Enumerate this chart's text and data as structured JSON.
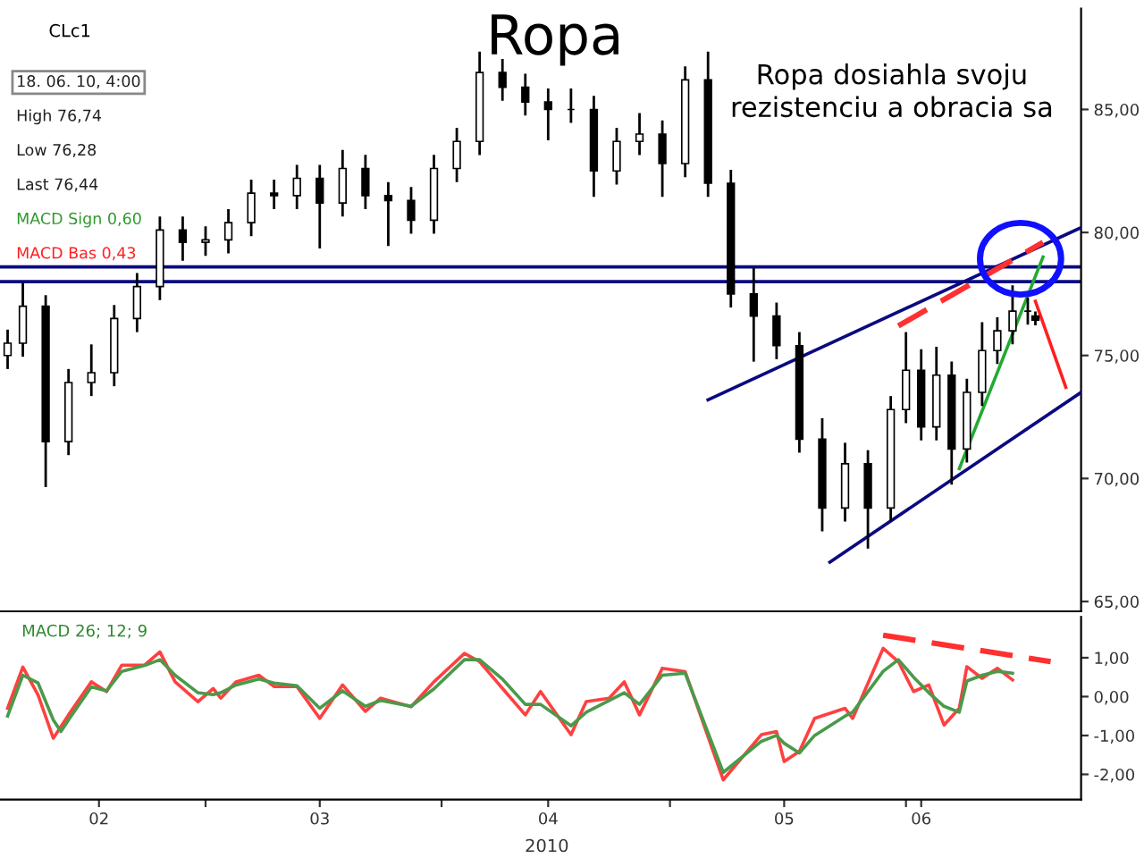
{
  "chart_data": [
    {
      "type": "candlestick",
      "title": "Ropa",
      "color": "#000000",
      "x": [
        "2010-02-03",
        "2010-02-05",
        "2010-02-08",
        "2010-02-11",
        "2010-02-14",
        "2010-02-17",
        "2010-02-20",
        "2010-02-23",
        "2010-02-26",
        "2010-03-01",
        "2010-03-04",
        "2010-03-07",
        "2010-03-10",
        "2010-03-13",
        "2010-03-16",
        "2010-03-19",
        "2010-03-22",
        "2010-03-25",
        "2010-03-28",
        "2010-03-31",
        "2010-04-03",
        "2010-04-06",
        "2010-04-09",
        "2010-04-12",
        "2010-04-15",
        "2010-04-18",
        "2010-04-21",
        "2010-04-24",
        "2010-04-27",
        "2010-04-30",
        "2010-05-03",
        "2010-05-06",
        "2010-05-09",
        "2010-05-12",
        "2010-05-15",
        "2010-05-18",
        "2010-05-21",
        "2010-05-24",
        "2010-05-27",
        "2010-05-30",
        "2010-06-01",
        "2010-06-03",
        "2010-06-05",
        "2010-06-07",
        "2010-06-09",
        "2010-06-11",
        "2010-06-13",
        "2010-06-15",
        "2010-06-17",
        "2010-06-18"
      ],
      "ohlc": [
        [
          75.0,
          76.0,
          74.5,
          75.5
        ],
        [
          75.5,
          77.9,
          75.0,
          77.0
        ],
        [
          77.0,
          77.4,
          69.7,
          71.5
        ],
        [
          71.5,
          74.4,
          71.0,
          73.9
        ],
        [
          73.9,
          75.4,
          73.4,
          74.3
        ],
        [
          74.3,
          77.0,
          73.8,
          76.5
        ],
        [
          76.5,
          78.3,
          76.0,
          77.8
        ],
        [
          77.8,
          80.6,
          77.3,
          80.1
        ],
        [
          80.1,
          80.6,
          78.9,
          79.6
        ],
        [
          79.6,
          80.2,
          79.1,
          79.7
        ],
        [
          79.7,
          80.9,
          79.2,
          80.4
        ],
        [
          80.4,
          82.1,
          79.9,
          81.6
        ],
        [
          81.6,
          82.1,
          81.0,
          81.5
        ],
        [
          81.5,
          82.7,
          81.0,
          82.2
        ],
        [
          82.2,
          82.7,
          79.4,
          81.2
        ],
        [
          81.2,
          83.3,
          80.7,
          82.6
        ],
        [
          82.6,
          83.1,
          81.0,
          81.5
        ],
        [
          81.5,
          82.0,
          79.5,
          81.3
        ],
        [
          81.3,
          81.8,
          80.0,
          80.5
        ],
        [
          80.5,
          83.1,
          80.0,
          82.6
        ],
        [
          82.6,
          84.2,
          82.1,
          83.7
        ],
        [
          83.7,
          87.3,
          83.2,
          86.5
        ],
        [
          86.5,
          87.0,
          85.4,
          85.9
        ],
        [
          85.9,
          86.4,
          84.8,
          85.3
        ],
        [
          85.3,
          85.8,
          83.8,
          85.0
        ],
        [
          85.0,
          85.8,
          84.5,
          85.0
        ],
        [
          85.0,
          85.5,
          81.5,
          82.5
        ],
        [
          82.5,
          84.2,
          82.0,
          83.7
        ],
        [
          83.7,
          84.8,
          83.2,
          84.0
        ],
        [
          84.0,
          84.5,
          81.5,
          82.8
        ],
        [
          82.8,
          86.7,
          82.3,
          86.2
        ],
        [
          86.2,
          87.3,
          81.5,
          82.0
        ],
        [
          82.0,
          82.5,
          77.0,
          77.5
        ],
        [
          77.5,
          78.5,
          74.8,
          76.6
        ],
        [
          76.6,
          77.1,
          74.9,
          75.4
        ],
        [
          75.4,
          75.9,
          71.1,
          71.6
        ],
        [
          71.6,
          72.4,
          67.9,
          68.8
        ],
        [
          68.8,
          71.4,
          68.3,
          70.6
        ],
        [
          70.6,
          71.1,
          67.2,
          68.8
        ],
        [
          68.8,
          73.3,
          68.3,
          72.8
        ],
        [
          72.8,
          75.9,
          72.3,
          74.4
        ],
        [
          74.4,
          75.2,
          71.6,
          72.1
        ],
        [
          72.1,
          75.3,
          71.6,
          74.2
        ],
        [
          74.2,
          74.7,
          69.8,
          71.2
        ],
        [
          71.2,
          74.0,
          70.7,
          73.5
        ],
        [
          73.5,
          76.3,
          73.0,
          75.2
        ],
        [
          75.2,
          76.5,
          74.7,
          76.0
        ],
        [
          76.0,
          77.8,
          75.5,
          76.8
        ],
        [
          76.8,
          77.3,
          76.3,
          76.8
        ],
        [
          76.6,
          76.74,
          76.28,
          76.44
        ]
      ],
      "series": [
        {
          "type": "line",
          "color": "#0a0a80",
          "x": [
            "2010-05-06",
            "2010-06-24"
          ],
          "values": [
            73.2,
            80.2
          ]
        },
        {
          "type": "line",
          "color": "#0a0a80",
          "x": [
            "2010-05-22",
            "2010-06-24"
          ],
          "values": [
            66.6,
            73.5
          ]
        },
        {
          "type": "line",
          "color": "#22aa33",
          "x": [
            "2010-06-08",
            "2010-06-19"
          ],
          "values": [
            70.4,
            79.0
          ]
        },
        {
          "type": "line",
          "color": "#ff3030",
          "line_style": "dashed",
          "x": [
            "2010-05-31",
            "2010-06-19"
          ],
          "values": [
            76.2,
            79.6
          ]
        },
        {
          "type": "line",
          "color": "#ff2020",
          "x": [
            "2010-06-18",
            "2010-06-22"
          ],
          "values": [
            77.2,
            73.7
          ]
        }
      ],
      "ref_lines": [
        {
          "axis": "y",
          "value": 78.0,
          "color": "#0a0a80"
        },
        {
          "axis": "y",
          "value": 78.6,
          "color": "#0a0a80"
        }
      ],
      "annotations": [
        "CLc1",
        "Ropa dosiahla svoju\nrezistenciu a obracia sa",
        "18. 06. 10, 4:00",
        "High 76,74",
        "Low 76,28",
        "Last 76,44",
        "MACD Sign 0,60",
        "MACD Bas 0,43"
      ],
      "xlim": [
        "2010-02-02",
        "2010-06-24"
      ],
      "ylim": [
        64.6,
        89.1
      ],
      "yticks": [
        {
          "value": 65,
          "label": "65,00"
        },
        {
          "value": 70,
          "label": "70,00"
        },
        {
          "value": 75,
          "label": "75,00"
        },
        {
          "value": 80,
          "label": "80,00"
        },
        {
          "value": 85,
          "label": "85,00"
        }
      ],
      "tick_labels": "y"
    },
    {
      "type": "line",
      "xlabel": "2010",
      "annotations": [
        "MACD 26; 12; 9"
      ],
      "series": [
        {
          "color": "#ff4040",
          "x": [
            "2010-02-03",
            "2010-02-05",
            "2010-02-07",
            "2010-02-09",
            "2010-02-11",
            "2010-02-14",
            "2010-02-16",
            "2010-02-18",
            "2010-02-21",
            "2010-02-23",
            "2010-02-25",
            "2010-02-28",
            "2010-03-02",
            "2010-03-03",
            "2010-03-05",
            "2010-03-08",
            "2010-03-10",
            "2010-03-13",
            "2010-03-16",
            "2010-03-19",
            "2010-03-22",
            "2010-03-24",
            "2010-03-28",
            "2010-03-31",
            "2010-04-04",
            "2010-04-06",
            "2010-04-09",
            "2010-04-12",
            "2010-04-14",
            "2010-04-18",
            "2010-04-20",
            "2010-04-23",
            "2010-04-25",
            "2010-04-27",
            "2010-04-30",
            "2010-05-03",
            "2010-05-08",
            "2010-05-13",
            "2010-05-15",
            "2010-05-16",
            "2010-05-18",
            "2010-05-20",
            "2010-05-24",
            "2010-05-25",
            "2010-05-29",
            "2010-05-31",
            "2010-06-02",
            "2010-06-04",
            "2010-06-06",
            "2010-06-08",
            "2010-06-09",
            "2010-06-11",
            "2010-06-13",
            "2010-06-15"
          ],
          "values": [
            -0.3,
            0.76,
            0.04,
            -1.07,
            -0.47,
            0.38,
            0.13,
            0.81,
            0.81,
            1.15,
            0.38,
            -0.13,
            0.21,
            -0.04,
            0.38,
            0.55,
            0.26,
            0.26,
            -0.56,
            0.3,
            -0.38,
            -0.04,
            -0.26,
            0.38,
            1.11,
            0.9,
            0.21,
            -0.47,
            0.13,
            -0.98,
            -0.13,
            -0.04,
            0.38,
            -0.47,
            0.73,
            0.64,
            -2.14,
            -0.98,
            -0.9,
            -1.67,
            -1.41,
            -0.56,
            -0.3,
            -0.56,
            1.24,
            0.9,
            0.13,
            0.3,
            -0.73,
            -0.3,
            0.77,
            0.47,
            0.73,
            0.43
          ]
        },
        {
          "color": "#4a9a4a",
          "x": [
            "2010-02-03",
            "2010-02-05",
            "2010-02-07",
            "2010-02-09",
            "2010-02-10",
            "2010-02-11",
            "2010-02-14",
            "2010-02-16",
            "2010-02-18",
            "2010-02-21",
            "2010-02-23",
            "2010-02-25",
            "2010-02-28",
            "2010-03-02",
            "2010-03-03",
            "2010-03-05",
            "2010-03-08",
            "2010-03-10",
            "2010-03-13",
            "2010-03-16",
            "2010-03-19",
            "2010-03-22",
            "2010-03-24",
            "2010-03-28",
            "2010-03-31",
            "2010-04-04",
            "2010-04-06",
            "2010-04-09",
            "2010-04-12",
            "2010-04-14",
            "2010-04-18",
            "2010-04-20",
            "2010-04-23",
            "2010-04-25",
            "2010-04-27",
            "2010-04-30",
            "2010-05-03",
            "2010-05-08",
            "2010-05-13",
            "2010-05-15",
            "2010-05-16",
            "2010-05-18",
            "2010-05-20",
            "2010-05-24",
            "2010-05-25",
            "2010-05-29",
            "2010-05-31",
            "2010-06-02",
            "2010-06-04",
            "2010-06-06",
            "2010-06-08",
            "2010-06-09",
            "2010-06-11",
            "2010-06-13",
            "2010-06-15"
          ],
          "values": [
            -0.5,
            0.55,
            0.35,
            -0.6,
            -0.9,
            -0.6,
            0.25,
            0.15,
            0.65,
            0.8,
            0.95,
            0.55,
            0.1,
            0.05,
            0.1,
            0.3,
            0.45,
            0.35,
            0.28,
            -0.3,
            0.15,
            -0.25,
            -0.1,
            -0.25,
            0.2,
            0.95,
            0.95,
            0.45,
            -0.2,
            -0.2,
            -0.75,
            -0.4,
            -0.1,
            0.1,
            -0.2,
            0.55,
            0.6,
            -1.95,
            -1.15,
            -1.0,
            -1.2,
            -1.45,
            -1.0,
            -0.5,
            -0.4,
            0.65,
            0.95,
            0.5,
            0.1,
            -0.25,
            -0.4,
            0.4,
            0.55,
            0.65,
            0.6
          ]
        },
        {
          "color": "#ff3030",
          "line_style": "dashed",
          "x": [
            "2010-05-29",
            "2010-06-20"
          ],
          "values": [
            1.58,
            0.9
          ]
        }
      ],
      "xlim": [
        "2010-02-02",
        "2010-06-24"
      ],
      "xticks": [
        {
          "value": "2010-02-15",
          "label": "02"
        },
        {
          "value": "2010-03-01",
          "label": null
        },
        {
          "value": "2010-03-16",
          "label": "03"
        },
        {
          "value": "2010-04-01",
          "label": null
        },
        {
          "value": "2010-04-15",
          "label": "04"
        },
        {
          "value": "2010-05-01",
          "label": null
        },
        {
          "value": "2010-05-16",
          "label": "05"
        },
        {
          "value": "2010-06-01",
          "label": null
        },
        {
          "value": "2010-06-03",
          "label": "06"
        }
      ],
      "ylim": [
        -2.65,
        2.05
      ],
      "yticks": [
        {
          "value": -2,
          "label": "-2,00"
        },
        {
          "value": -1,
          "label": "-1,00"
        },
        {
          "value": 0,
          "label": "0,00"
        },
        {
          "value": 1,
          "label": "1,00"
        }
      ]
    }
  ]
}
